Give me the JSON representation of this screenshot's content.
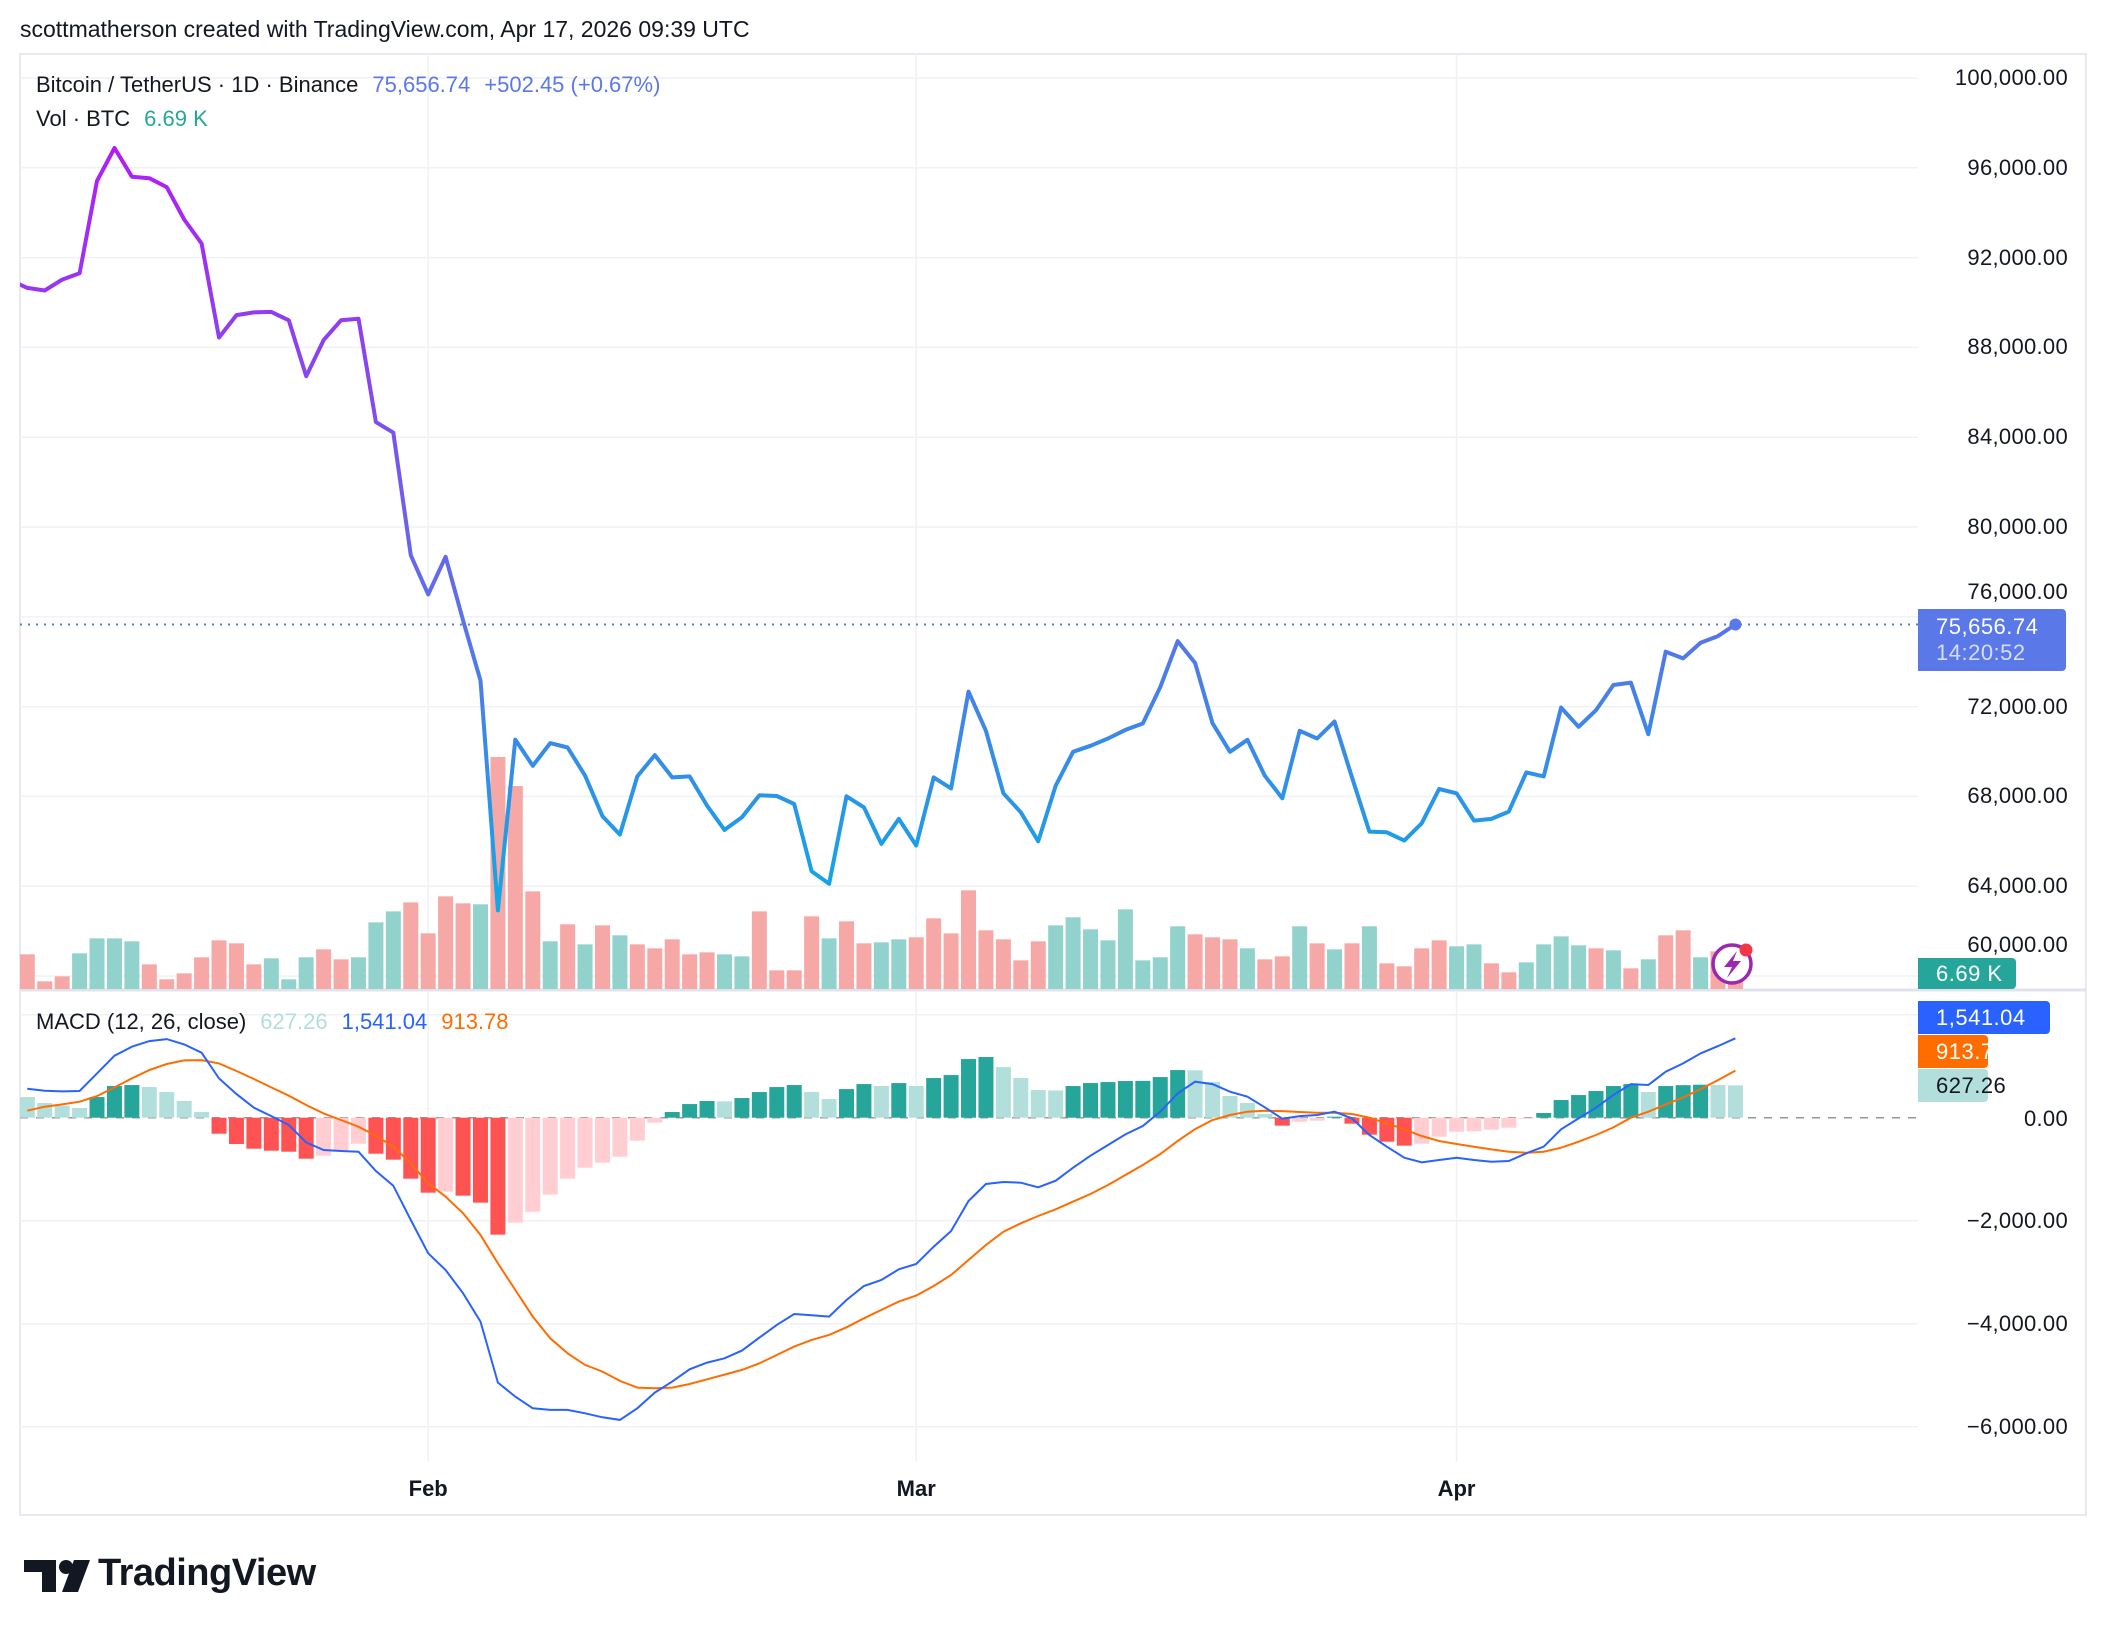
{
  "header": {
    "caption": "scottmatherson created with TradingView.com, Apr 17, 2026 09:39 UTC"
  },
  "legend": {
    "symbol": "Bitcoin / TetherUS · 1D · Binance",
    "last_price": "75,656.74",
    "change": "+502.45 (+0.67%)",
    "volume_label": "Vol · BTC",
    "volume_value": "6.69 K",
    "macd_label": "MACD (12, 26, close)",
    "macd_hist": "627.26",
    "macd_value": "1,541.04",
    "macd_signal": "913.78"
  },
  "tags": {
    "price": "75,656.74",
    "countdown": "14:20:52",
    "volume": "6.69 K",
    "macd": "1,541.04",
    "signal": "913.78",
    "hist": "627.26"
  },
  "logo": {
    "text": "TradingView"
  },
  "colors": {
    "line_high": "#b31cf5",
    "line_mid": "#5a72ea",
    "line_low": "#10a8e6",
    "price_tag": "#5b78e8",
    "volume_up": "#92d2cc",
    "volume_down": "#f6a8a6",
    "hist_up_strong": "#26a69a",
    "hist_up_weak": "#b2dfdb",
    "hist_down_strong": "#ff5252",
    "hist_down_weak": "#ffcdd2",
    "macd_line": "#2962ff",
    "signal_line": "#ff6d00",
    "grid": "#f0f1f4"
  },
  "icons": {
    "alert": "lightning-bolt-icon",
    "logo": "tradingview-logo-icon"
  },
  "chart_data": [
    {
      "type": "line",
      "title": "Bitcoin / TetherUS · 1D · Binance",
      "ylim": [
        58000,
        100000
      ],
      "grid": true,
      "x_ticks": [
        "Feb",
        "Mar",
        "Apr"
      ],
      "y_ticks": [
        "100,000.00",
        "96,000.00",
        "92,000.00",
        "88,000.00",
        "84,000.00",
        "80,000.00",
        "76,000.00",
        "72,000.00",
        "68,000.00",
        "64,000.00",
        "60,000.00"
      ],
      "dates": [
        "2026-01-09",
        "2026-01-10",
        "2026-01-11",
        "2026-01-12",
        "2026-01-13",
        "2026-01-14",
        "2026-01-15",
        "2026-01-16",
        "2026-01-17",
        "2026-01-18",
        "2026-01-19",
        "2026-01-20",
        "2026-01-21",
        "2026-01-22",
        "2026-01-23",
        "2026-01-24",
        "2026-01-25",
        "2026-01-26",
        "2026-01-27",
        "2026-01-28",
        "2026-01-29",
        "2026-01-30",
        "2026-01-31",
        "2026-02-01",
        "2026-02-02",
        "2026-02-03",
        "2026-02-04",
        "2026-02-05",
        "2026-02-06",
        "2026-02-07",
        "2026-02-08",
        "2026-02-09",
        "2026-02-10",
        "2026-02-11",
        "2026-02-12",
        "2026-02-13",
        "2026-02-14",
        "2026-02-15",
        "2026-02-16",
        "2026-02-17",
        "2026-02-18",
        "2026-02-19",
        "2026-02-20",
        "2026-02-21",
        "2026-02-22",
        "2026-02-23",
        "2026-02-24",
        "2026-02-25",
        "2026-02-26",
        "2026-02-27",
        "2026-02-28",
        "2026-03-01",
        "2026-03-02",
        "2026-03-03",
        "2026-03-04",
        "2026-03-05",
        "2026-03-06",
        "2026-03-07",
        "2026-03-08",
        "2026-03-09",
        "2026-03-10",
        "2026-03-11",
        "2026-03-12",
        "2026-03-13",
        "2026-03-14",
        "2026-03-15",
        "2026-03-16",
        "2026-03-17",
        "2026-03-18",
        "2026-03-19",
        "2026-03-20",
        "2026-03-21",
        "2026-03-22",
        "2026-03-23",
        "2026-03-24",
        "2026-03-25",
        "2026-03-26",
        "2026-03-27",
        "2026-03-28",
        "2026-03-29",
        "2026-03-30",
        "2026-03-31",
        "2026-04-01",
        "2026-04-02",
        "2026-04-03",
        "2026-04-04",
        "2026-04-05",
        "2026-04-06",
        "2026-04-07",
        "2026-04-08",
        "2026-04-09",
        "2026-04-10",
        "2026-04-11",
        "2026-04-12",
        "2026-04-13",
        "2026-04-14",
        "2026-04-15",
        "2026-04-16",
        "2026-04-17"
      ],
      "close": [
        90650,
        90534,
        91022,
        91301,
        95418,
        96884,
        95604,
        95535,
        95139,
        93697,
        92627,
        88440,
        89440,
        89557,
        89580,
        89208,
        86719,
        88324,
        89208,
        89278,
        84672,
        84207,
        78741,
        76997,
        78671,
        75834,
        73159,
        62924,
        70530,
        69365,
        70372,
        70180,
        68921,
        67114,
        66299,
        68891,
        69839,
        68847,
        68891,
        67587,
        66507,
        67070,
        68047,
        68017,
        67662,
        64670,
        64108,
        68003,
        67514,
        65885,
        66996,
        65811,
        68847,
        68358,
        72668,
        70920,
        68136,
        67292,
        66000,
        68476,
        69987,
        70253,
        70579,
        70964,
        71246,
        72875,
        74919,
        73941,
        71261,
        69987,
        70520,
        68921,
        67914,
        70920,
        70579,
        71335,
        68847,
        66433,
        66403,
        66033,
        66803,
        68328,
        68136,
        66921,
        66996,
        67322,
        69069,
        68891,
        71957,
        71098,
        71838,
        72964,
        73068,
        70772,
        74445,
        74149,
        74845,
        75141,
        75656.74
      ],
      "volume_k": [
        6.05,
        1.34,
        2.21,
        6.22,
        8.84,
        8.84,
        8.32,
        4.3,
        1.69,
        2.73,
        5.53,
        8.49,
        7.97,
        4.3,
        5.35,
        1.69,
        5.53,
        6.92,
        5.18,
        5.53,
        11.63,
        13.55,
        15.12,
        9.71,
        16.17,
        14.95,
        14.78,
        40.49,
        35.43,
        17.04,
        8.32,
        11.29,
        7.79,
        11.11,
        9.37,
        7.79,
        7.1,
        8.67,
        6.05,
        6.4,
        6.05,
        5.7,
        13.55,
        3.26,
        3.26,
        12.68,
        8.84,
        11.81,
        7.97,
        8.14,
        8.67,
        9.02,
        12.33,
        9.71,
        17.22,
        10.24,
        8.67,
        5.0,
        8.32,
        11.11,
        12.51,
        10.41,
        8.49,
        13.9,
        5.0,
        5.53,
        10.94,
        9.54,
        9.02,
        8.67,
        7.1,
        5.18,
        5.7,
        10.94,
        7.97,
        6.92,
        7.97,
        10.94,
        4.48,
        3.96,
        7.1,
        8.49,
        7.45,
        7.79,
        4.48,
        2.91,
        4.65,
        7.79,
        9.19,
        7.62,
        7.1,
        6.75,
        3.61,
        5.18,
        9.37,
        10.24,
        5.53,
        6.57,
        6.69
      ],
      "volume_direction": "ddduuuuddddddduuudduuuddddudddudududdddduuddddudduudddddddduuuuuuuuddduddudududddduudduuuudududduddduuu"
    },
    {
      "type": "line",
      "title": "MACD (12, 26, close)",
      "ylim": [
        -6600,
        2600
      ],
      "grid": true,
      "y_ticks": [
        "0.00",
        "−2,000.00",
        "−4,000.00",
        "−6,000.00"
      ],
      "macd": [
        563,
        524,
        511,
        518,
        861,
        1203,
        1378,
        1488,
        1527,
        1423,
        1262,
        763,
        459,
        194,
        32,
        -142,
        -479,
        -628,
        -647,
        -660,
        -1035,
        -1320,
        -1986,
        -2633,
        -2957,
        -3410,
        -3960,
        -5144,
        -5415,
        -5642,
        -5674,
        -5674,
        -5739,
        -5817,
        -5868,
        -5642,
        -5338,
        -5124,
        -4885,
        -4755,
        -4671,
        -4523,
        -4270,
        -4024,
        -3811,
        -3837,
        -3863,
        -3539,
        -3267,
        -3151,
        -2944,
        -2840,
        -2504,
        -2200,
        -1618,
        -1288,
        -1249,
        -1262,
        -1352,
        -1223,
        -971,
        -738,
        -531,
        -324,
        -162,
        116,
        472,
        699,
        653,
        505,
        408,
        201,
        -19,
        32,
        52,
        116,
        -13,
        -336,
        -563,
        -776,
        -867,
        -822,
        -776,
        -822,
        -854,
        -841,
        -692,
        -563,
        -226,
        -13,
        194,
        440,
        653,
        634,
        893,
        1055,
        1249,
        1391,
        1541.04
      ],
      "signal": [
        136,
        213,
        259,
        311,
        420,
        589,
        763,
        925,
        1042,
        1113,
        1119,
        1055,
        906,
        751,
        589,
        427,
        246,
        84,
        -45,
        -175,
        -349,
        -563,
        -886,
        -1275,
        -1533,
        -1857,
        -2277,
        -2827,
        -3345,
        -3862,
        -4283,
        -4574,
        -4800,
        -4930,
        -5111,
        -5241,
        -5254,
        -5241,
        -5170,
        -5079,
        -4988,
        -4898,
        -4768,
        -4607,
        -4445,
        -4315,
        -4218,
        -4070,
        -3895,
        -3733,
        -3571,
        -3455,
        -3267,
        -3054,
        -2763,
        -2472,
        -2213,
        -2051,
        -1909,
        -1779,
        -1630,
        -1482,
        -1307,
        -1113,
        -919,
        -705,
        -453,
        -221,
        -45,
        52,
        116,
        136,
        129,
        110,
        97,
        97,
        71,
        0,
        -110,
        -226,
        -356,
        -453,
        -511,
        -563,
        -615,
        -660,
        -679,
        -660,
        -582,
        -466,
        -336,
        -188,
        0,
        116,
        259,
        395,
        556,
        731,
        913.78
      ],
      "histogram": [
        401,
        285,
        233,
        188,
        401,
        615,
        634,
        595,
        498,
        324,
        110,
        -311,
        -511,
        -602,
        -641,
        -660,
        -796,
        -738,
        -628,
        -505,
        -699,
        -815,
        -1184,
        -1456,
        -1436,
        -1514,
        -1650,
        -2271,
        -2038,
        -1825,
        -1495,
        -1184,
        -971,
        -873,
        -757,
        -446,
        -97,
        110,
        265,
        324,
        318,
        382,
        498,
        595,
        634,
        498,
        362,
        556,
        653,
        615,
        673,
        615,
        770,
        828,
        1139,
        1178,
        983,
        770,
        537,
        530,
        615,
        673,
        692,
        712,
        715,
        789,
        925,
        920,
        692,
        421,
        285,
        71,
        -155,
        -78,
        -58,
        20,
        -116,
        -330,
        -466,
        -543,
        -505,
        -369,
        -272,
        -265,
        -233,
        -194,
        -13,
        91,
        343,
        440,
        518,
        615,
        653,
        498,
        615,
        632,
        640,
        634,
        627.26
      ]
    }
  ]
}
